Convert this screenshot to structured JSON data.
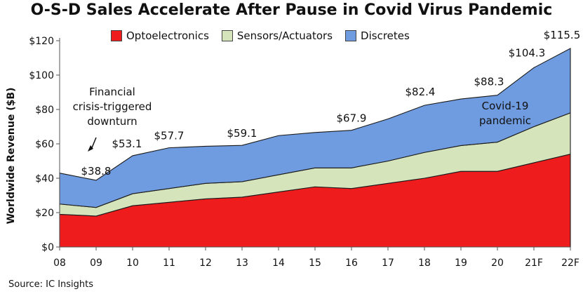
{
  "chart_data": {
    "type": "area",
    "stacked": true,
    "title": "O-S-D Sales Accelerate After Pause in Covid Virus Pandemic",
    "ylabel": "Worldwide Revenue ($B)",
    "xlabel": "",
    "categories": [
      "08",
      "09",
      "10",
      "11",
      "12",
      "13",
      "14",
      "15",
      "16",
      "17",
      "18",
      "19",
      "20",
      "21F",
      "22F"
    ],
    "y_ticks": [
      "$0",
      "$20",
      "$40",
      "$60",
      "$80",
      "$100",
      "$120"
    ],
    "ylim": [
      0,
      120
    ],
    "series": [
      {
        "name": "Optoelectronics",
        "color": "#ee1c1c",
        "values": [
          19,
          18,
          24,
          26,
          28,
          29,
          32,
          35,
          34,
          37,
          40,
          44,
          44,
          49,
          54
        ]
      },
      {
        "name": "Sensors/Actuators",
        "color": "#d6e4bc",
        "values": [
          6,
          5,
          7,
          8,
          9,
          9,
          10,
          11,
          12,
          13,
          15,
          15,
          17,
          21,
          24
        ]
      },
      {
        "name": "Discretes",
        "color": "#6f9be0",
        "values": [
          18,
          15.8,
          22.1,
          23.7,
          21.6,
          21.1,
          22.8,
          20.6,
          21.9,
          24.5,
          27.4,
          27.1,
          27.3,
          34.3,
          37.5
        ]
      }
    ],
    "totals": [
      43,
      38.8,
      53.1,
      57.7,
      58.6,
      59.1,
      64.8,
      66.6,
      67.9,
      74.5,
      82.4,
      86.1,
      88.3,
      104.3,
      115.5
    ],
    "value_labels": [
      {
        "index": 1,
        "text": "$38.8"
      },
      {
        "index": 2,
        "text": "$53.1"
      },
      {
        "index": 3,
        "text": "$57.7"
      },
      {
        "index": 5,
        "text": "$59.1"
      },
      {
        "index": 8,
        "text": "$67.9"
      },
      {
        "index": 10,
        "text": "$82.4"
      },
      {
        "index": 12,
        "text": "$88.3"
      },
      {
        "index": 13,
        "text": "$104.3"
      },
      {
        "index": 14,
        "text": "$115.5"
      }
    ],
    "annotations": {
      "crisis": [
        "Financial",
        "crisis-triggered",
        "downturn"
      ],
      "covid": [
        "Covid-19",
        "pandemic"
      ]
    },
    "legend_position": "top",
    "grid": false
  },
  "source": "Source: IC Insights"
}
